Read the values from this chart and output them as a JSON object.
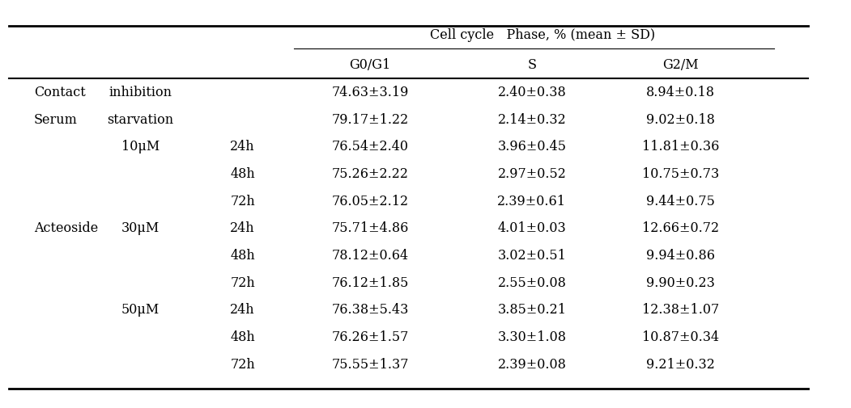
{
  "title": "Cell cycle   Phase, % (mean ± SD)",
  "col_headers": [
    "G0/G1",
    "S",
    "G2/M"
  ],
  "rows": [
    {
      "col1": "Contact",
      "col2": "inhibition",
      "col3": "",
      "g0g1": "74.63±3.19",
      "s": "2.40±0.38",
      "g2m": "8.94±0.18"
    },
    {
      "col1": "Serum",
      "col2": "starvation",
      "col3": "",
      "g0g1": "79.17±1.22",
      "s": "2.14±0.32",
      "g2m": "9.02±0.18"
    },
    {
      "col1": "",
      "col2": "10μM",
      "col3": "24h",
      "g0g1": "76.54±2.40",
      "s": "3.96±0.45",
      "g2m": "11.81±0.36"
    },
    {
      "col1": "",
      "col2": "",
      "col3": "48h",
      "g0g1": "75.26±2.22",
      "s": "2.97±0.52",
      "g2m": "10.75±0.73"
    },
    {
      "col1": "",
      "col2": "",
      "col3": "72h",
      "g0g1": "76.05±2.12",
      "s": "2.39±0.61",
      "g2m": "9.44±0.75"
    },
    {
      "col1": "Acteoside",
      "col2": "30μM",
      "col3": "24h",
      "g0g1": "75.71±4.86",
      "s": "4.01±0.03",
      "g2m": "12.66±0.72"
    },
    {
      "col1": "",
      "col2": "",
      "col3": "48h",
      "g0g1": "78.12±0.64",
      "s": "3.02±0.51",
      "g2m": "9.94±0.86"
    },
    {
      "col1": "",
      "col2": "",
      "col3": "72h",
      "g0g1": "76.12±1.85",
      "s": "2.55±0.08",
      "g2m": "9.90±0.23"
    },
    {
      "col1": "",
      "col2": "50μM",
      "col3": "24h",
      "g0g1": "76.38±5.43",
      "s": "3.85±0.21",
      "g2m": "12.38±1.07"
    },
    {
      "col1": "",
      "col2": "",
      "col3": "48h",
      "g0g1": "76.26±1.57",
      "s": "3.30±1.08",
      "g2m": "10.87±0.34"
    },
    {
      "col1": "",
      "col2": "",
      "col3": "72h",
      "g0g1": "75.55±1.37",
      "s": "2.39±0.08",
      "g2m": "9.21±0.32"
    }
  ],
  "bg_color": "#ffffff",
  "text_color": "#000000",
  "font_size": 11.5
}
